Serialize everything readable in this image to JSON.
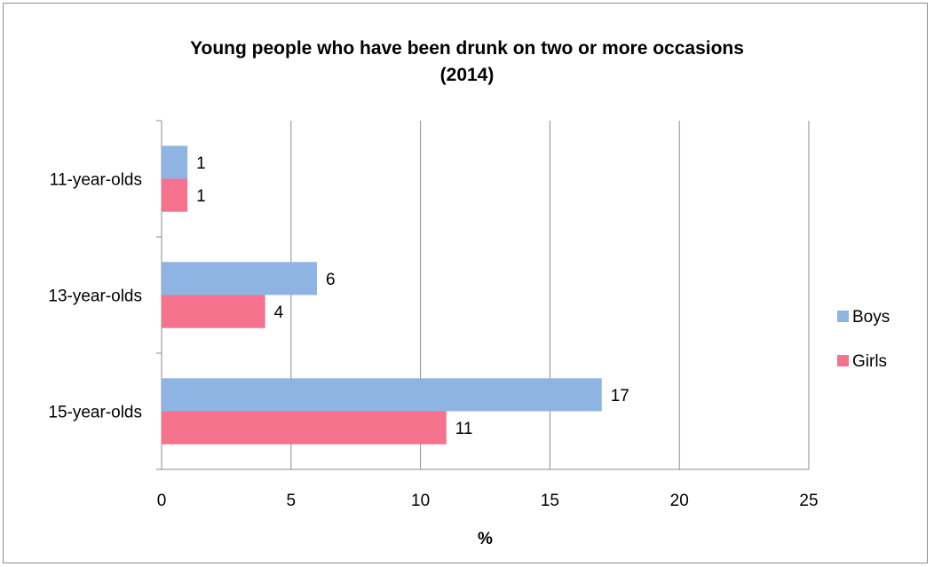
{
  "chart_data": {
    "type": "bar",
    "orientation": "horizontal",
    "title_line1": "Young people who have been drunk on two or more occasions",
    "title_line2": "(2014)",
    "categories": [
      "11-year-olds",
      "13-year-olds",
      "15-year-olds"
    ],
    "series": [
      {
        "name": "Boys",
        "values": [
          1,
          6,
          17
        ],
        "color": "#8eb4e3"
      },
      {
        "name": "Girls",
        "values": [
          1,
          4,
          11
        ],
        "color": "#f4728c"
      }
    ],
    "xlabel": "%",
    "ylabel": "",
    "xlim": [
      0,
      25
    ],
    "xticks": [
      0,
      5,
      10,
      15,
      20,
      25
    ],
    "grid": "vertical",
    "legend_position": "right"
  }
}
